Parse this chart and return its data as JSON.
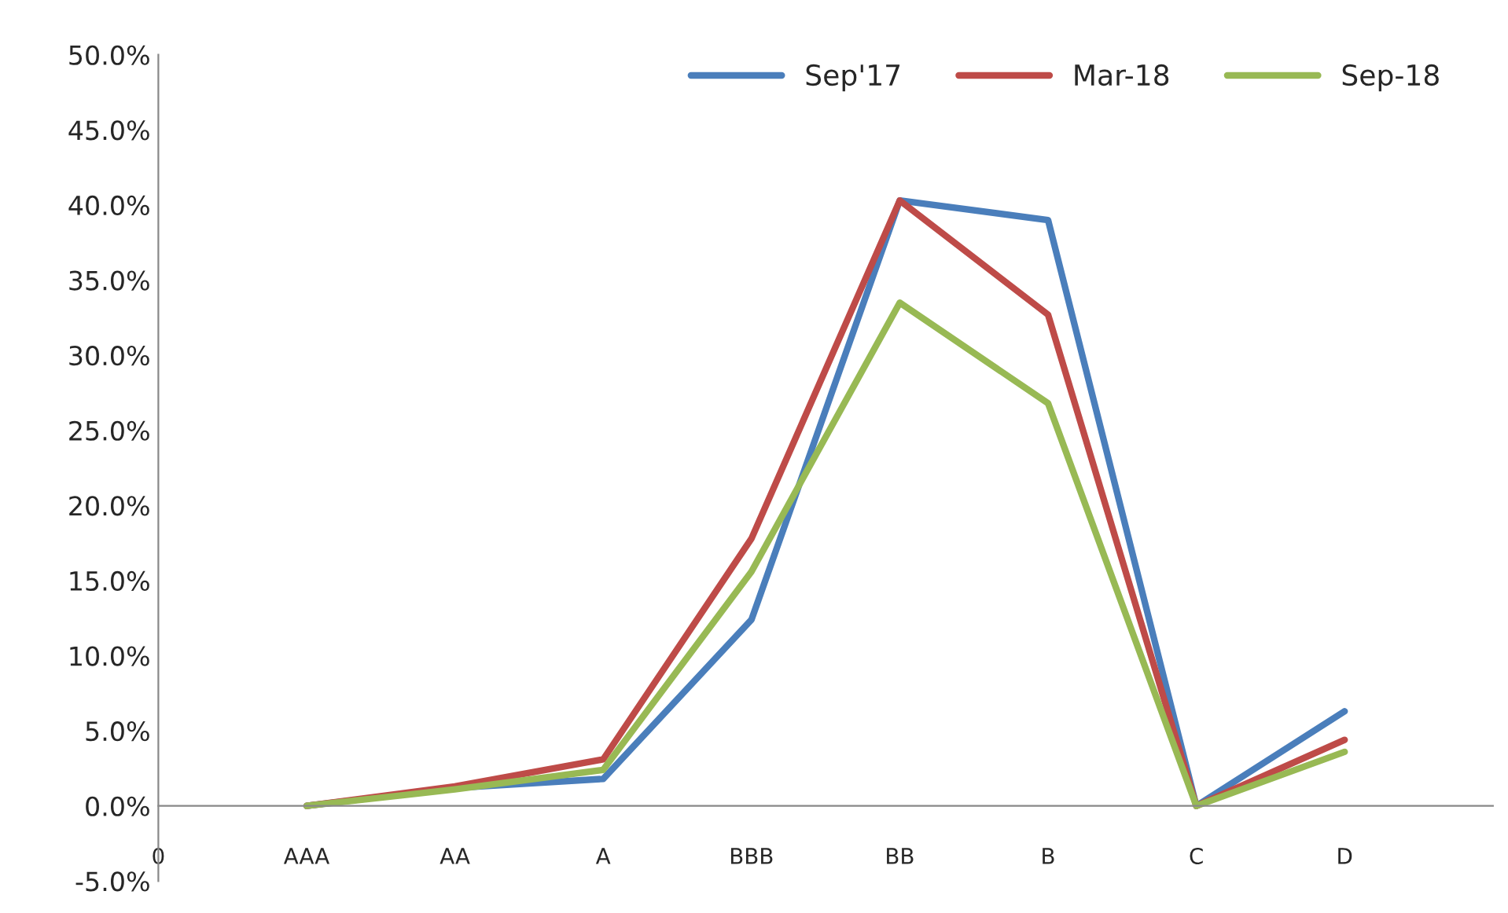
{
  "chart_data": {
    "type": "line",
    "categories": [
      "0",
      "AAA",
      "AA",
      "A",
      "BBB",
      "BB",
      "B",
      "C",
      "D"
    ],
    "series": [
      {
        "name": "Sep'17",
        "color": "#4a7ebb",
        "values": [
          null,
          0.0,
          1.2,
          1.8,
          12.4,
          40.3,
          39.0,
          0.0,
          6.3
        ]
      },
      {
        "name": "Mar-18",
        "color": "#be4b48",
        "values": [
          null,
          0.0,
          1.3,
          3.1,
          17.8,
          40.3,
          32.7,
          0.0,
          4.4
        ]
      },
      {
        "name": "Sep-18",
        "color": "#98b954",
        "values": [
          null,
          0.0,
          1.1,
          2.4,
          15.6,
          33.5,
          26.8,
          0.0,
          3.6
        ]
      }
    ],
    "ylim": [
      -5,
      50
    ],
    "yticks": [
      {
        "value": -5,
        "label": "-5.0%"
      },
      {
        "value": 0,
        "label": "0.0%"
      },
      {
        "value": 5,
        "label": "5.0%"
      },
      {
        "value": 10,
        "label": "10.0%"
      },
      {
        "value": 15,
        "label": "15.0%"
      },
      {
        "value": 20,
        "label": "20.0%"
      },
      {
        "value": 25,
        "label": "25.0%"
      },
      {
        "value": 30,
        "label": "30.0%"
      },
      {
        "value": 35,
        "label": "35.0%"
      },
      {
        "value": 40,
        "label": "40.0%"
      },
      {
        "value": 45,
        "label": "45.0%"
      },
      {
        "value": 50,
        "label": "50.0%"
      }
    ],
    "legend": "top right",
    "grid": false,
    "marker": "none",
    "line_style": "solid"
  }
}
